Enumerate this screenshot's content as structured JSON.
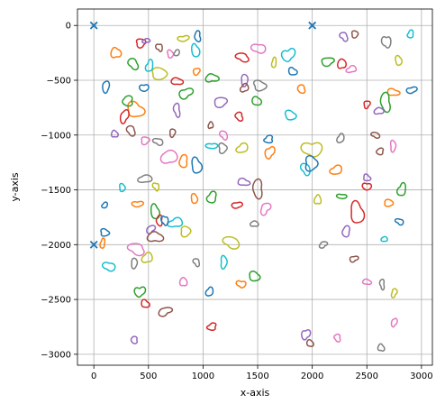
{
  "chart_data": {
    "type": "scatter",
    "xlabel": "x-axis",
    "ylabel": "y-axis",
    "xlim": [
      -150,
      3100
    ],
    "ylim": [
      -3100,
      150
    ],
    "xticks": [
      0,
      500,
      1000,
      1500,
      2000,
      2500,
      3000
    ],
    "yticks": [
      0,
      -500,
      -1000,
      -1500,
      -2000,
      -2500,
      -3000
    ],
    "grid": true,
    "markers": [
      {
        "x": 0,
        "y": 0
      },
      {
        "x": 2000,
        "y": 0
      },
      {
        "x": 0,
        "y": -2000
      }
    ],
    "marker_color": "#1f77b4",
    "series_colors": [
      "#1f77b4",
      "#ff7f0e",
      "#2ca02c",
      "#d62728",
      "#9467bd",
      "#8c564b",
      "#e377c2",
      "#7f7f7f",
      "#bcbd22",
      "#17becf"
    ],
    "contours": [
      {
        "cx": 110,
        "cy": -560,
        "r": 40
      },
      {
        "cx": 200,
        "cy": -250,
        "r": 45
      },
      {
        "cx": 360,
        "cy": -350,
        "r": 45
      },
      {
        "cx": 430,
        "cy": -160,
        "r": 40
      },
      {
        "cx": 480,
        "cy": -140,
        "r": 25
      },
      {
        "cx": 600,
        "cy": -200,
        "r": 30
      },
      {
        "cx": 700,
        "cy": -260,
        "r": 30
      },
      {
        "cx": 760,
        "cy": -250,
        "r": 25
      },
      {
        "cx": 820,
        "cy": -120,
        "r": 35
      },
      {
        "cx": 930,
        "cy": -230,
        "r": 45
      },
      {
        "cx": 950,
        "cy": -100,
        "r": 35
      },
      {
        "cx": 940,
        "cy": -420,
        "r": 30
      },
      {
        "cx": 1080,
        "cy": -480,
        "r": 45
      },
      {
        "cx": 1360,
        "cy": -290,
        "r": 45
      },
      {
        "cx": 1380,
        "cy": -500,
        "r": 40
      },
      {
        "cx": 1380,
        "cy": -570,
        "r": 35
      },
      {
        "cx": 1510,
        "cy": -210,
        "r": 50
      },
      {
        "cx": 1520,
        "cy": -550,
        "r": 50
      },
      {
        "cx": 1650,
        "cy": -340,
        "r": 30
      },
      {
        "cx": 1780,
        "cy": -270,
        "r": 55
      },
      {
        "cx": 1820,
        "cy": -420,
        "r": 35
      },
      {
        "cx": 1900,
        "cy": -580,
        "r": 35
      },
      {
        "cx": 2140,
        "cy": -330,
        "r": 45
      },
      {
        "cx": 2270,
        "cy": -350,
        "r": 40
      },
      {
        "cx": 2290,
        "cy": -100,
        "r": 35
      },
      {
        "cx": 2390,
        "cy": -80,
        "r": 30
      },
      {
        "cx": 2360,
        "cy": -400,
        "r": 35
      },
      {
        "cx": 2680,
        "cy": -150,
        "r": 45
      },
      {
        "cx": 2790,
        "cy": -320,
        "r": 35
      },
      {
        "cx": 2900,
        "cy": -80,
        "r": 30
      },
      {
        "cx": 2910,
        "cy": -590,
        "r": 35
      },
      {
        "cx": 2740,
        "cy": -610,
        "r": 40
      },
      {
        "cx": 2670,
        "cy": -700,
        "r": 60
      },
      {
        "cx": 2500,
        "cy": -720,
        "r": 30
      },
      {
        "cx": 2610,
        "cy": -780,
        "r": 35
      },
      {
        "cx": 2580,
        "cy": -1000,
        "r": 30
      },
      {
        "cx": 2740,
        "cy": -1100,
        "r": 35
      },
      {
        "cx": 2260,
        "cy": -1030,
        "r": 35
      },
      {
        "cx": 2000,
        "cy": -1130,
        "r": 75
      },
      {
        "cx": 1800,
        "cy": -820,
        "r": 45
      },
      {
        "cx": 1600,
        "cy": -1040,
        "r": 35
      },
      {
        "cx": 1610,
        "cy": -1160,
        "r": 45
      },
      {
        "cx": 1490,
        "cy": -690,
        "r": 40
      },
      {
        "cx": 1330,
        "cy": -830,
        "r": 35
      },
      {
        "cx": 1160,
        "cy": -700,
        "r": 50
      },
      {
        "cx": 1070,
        "cy": -910,
        "r": 25
      },
      {
        "cx": 1190,
        "cy": -1000,
        "r": 35
      },
      {
        "cx": 1180,
        "cy": -1120,
        "r": 40
      },
      {
        "cx": 1360,
        "cy": -1120,
        "r": 45
      },
      {
        "cx": 1080,
        "cy": -1100,
        "r": 35
      },
      {
        "cx": 940,
        "cy": -1280,
        "r": 55
      },
      {
        "cx": 820,
        "cy": -1240,
        "r": 45
      },
      {
        "cx": 840,
        "cy": -620,
        "r": 50
      },
      {
        "cx": 760,
        "cy": -510,
        "r": 40
      },
      {
        "cx": 760,
        "cy": -770,
        "r": 40
      },
      {
        "cx": 720,
        "cy": -980,
        "r": 30
      },
      {
        "cx": 690,
        "cy": -1200,
        "r": 65
      },
      {
        "cx": 590,
        "cy": -1060,
        "r": 35
      },
      {
        "cx": 600,
        "cy": -440,
        "r": 60
      },
      {
        "cx": 510,
        "cy": -370,
        "r": 40
      },
      {
        "cx": 460,
        "cy": -570,
        "r": 35
      },
      {
        "cx": 380,
        "cy": -770,
        "r": 70
      },
      {
        "cx": 310,
        "cy": -690,
        "r": 45
      },
      {
        "cx": 280,
        "cy": -830,
        "r": 45
      },
      {
        "cx": 190,
        "cy": -990,
        "r": 30
      },
      {
        "cx": 340,
        "cy": -960,
        "r": 40
      },
      {
        "cx": 470,
        "cy": -1050,
        "r": 35
      },
      {
        "cx": 470,
        "cy": -1400,
        "r": 45
      },
      {
        "cx": 570,
        "cy": -1470,
        "r": 30
      },
      {
        "cx": 260,
        "cy": -1480,
        "r": 30
      },
      {
        "cx": 100,
        "cy": -1640,
        "r": 25
      },
      {
        "cx": 400,
        "cy": -1630,
        "r": 35
      },
      {
        "cx": 560,
        "cy": -1700,
        "r": 50
      },
      {
        "cx": 600,
        "cy": -1780,
        "r": 35
      },
      {
        "cx": 520,
        "cy": -1860,
        "r": 35
      },
      {
        "cx": 560,
        "cy": -1930,
        "r": 55
      },
      {
        "cx": 390,
        "cy": -2040,
        "r": 60
      },
      {
        "cx": 370,
        "cy": -2170,
        "r": 35
      },
      {
        "cx": 490,
        "cy": -2120,
        "r": 45
      },
      {
        "cx": 140,
        "cy": -2200,
        "r": 45
      },
      {
        "cx": 100,
        "cy": -1890,
        "r": 35
      },
      {
        "cx": 80,
        "cy": -1990,
        "r": 30
      },
      {
        "cx": 420,
        "cy": -2430,
        "r": 45
      },
      {
        "cx": 470,
        "cy": -2540,
        "r": 35
      },
      {
        "cx": 370,
        "cy": -2870,
        "r": 30
      },
      {
        "cx": 650,
        "cy": -2610,
        "r": 45
      },
      {
        "cx": 820,
        "cy": -2340,
        "r": 35
      },
      {
        "cx": 940,
        "cy": -2160,
        "r": 30
      },
      {
        "cx": 840,
        "cy": -1880,
        "r": 45
      },
      {
        "cx": 750,
        "cy": -1800,
        "r": 50
      },
      {
        "cx": 650,
        "cy": -1780,
        "r": 35
      },
      {
        "cx": 920,
        "cy": -1580,
        "r": 35
      },
      {
        "cx": 1080,
        "cy": -1570,
        "r": 45
      },
      {
        "cx": 1310,
        "cy": -1640,
        "r": 35
      },
      {
        "cx": 1370,
        "cy": -1430,
        "r": 40
      },
      {
        "cx": 1500,
        "cy": -1490,
        "r": 60
      },
      {
        "cx": 1570,
        "cy": -1670,
        "r": 45
      },
      {
        "cx": 1470,
        "cy": -1810,
        "r": 30
      },
      {
        "cx": 1260,
        "cy": -1980,
        "r": 60
      },
      {
        "cx": 1190,
        "cy": -2160,
        "r": 40
      },
      {
        "cx": 1060,
        "cy": -2430,
        "r": 35
      },
      {
        "cx": 1350,
        "cy": -2360,
        "r": 35
      },
      {
        "cx": 1470,
        "cy": -2290,
        "r": 45
      },
      {
        "cx": 1080,
        "cy": -2750,
        "r": 35
      },
      {
        "cx": 1940,
        "cy": -2820,
        "r": 40
      },
      {
        "cx": 1980,
        "cy": -2900,
        "r": 30
      },
      {
        "cx": 2230,
        "cy": -2850,
        "r": 30
      },
      {
        "cx": 2100,
        "cy": -2000,
        "r": 30
      },
      {
        "cx": 2050,
        "cy": -1590,
        "r": 35
      },
      {
        "cx": 1940,
        "cy": -1310,
        "r": 45
      },
      {
        "cx": 1990,
        "cy": -1260,
        "r": 60
      },
      {
        "cx": 2220,
        "cy": -1320,
        "r": 45
      },
      {
        "cx": 2270,
        "cy": -1560,
        "r": 30
      },
      {
        "cx": 2410,
        "cy": -1710,
        "r": 75
      },
      {
        "cx": 2310,
        "cy": -1880,
        "r": 40
      },
      {
        "cx": 2380,
        "cy": -2130,
        "r": 30
      },
      {
        "cx": 2500,
        "cy": -2340,
        "r": 30
      },
      {
        "cx": 2640,
        "cy": -2360,
        "r": 30
      },
      {
        "cx": 2750,
        "cy": -2440,
        "r": 30
      },
      {
        "cx": 2660,
        "cy": -1950,
        "r": 25
      },
      {
        "cx": 2800,
        "cy": -1790,
        "r": 30
      },
      {
        "cx": 2700,
        "cy": -1620,
        "r": 35
      },
      {
        "cx": 2820,
        "cy": -1500,
        "r": 45
      },
      {
        "cx": 2500,
        "cy": -1470,
        "r": 35
      },
      {
        "cx": 2500,
        "cy": -1390,
        "r": 30
      },
      {
        "cx": 2620,
        "cy": -1150,
        "r": 30
      },
      {
        "cx": 2750,
        "cy": -2710,
        "r": 30
      },
      {
        "cx": 2630,
        "cy": -2940,
        "r": 30
      }
    ]
  }
}
